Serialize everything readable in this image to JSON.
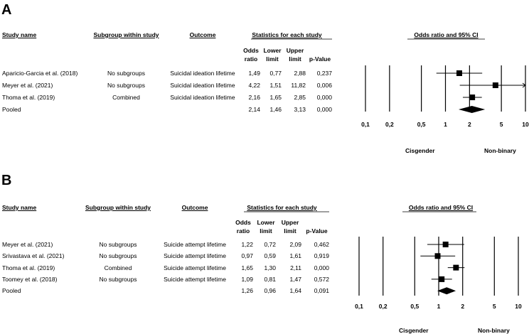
{
  "panels": [
    {
      "letter": "A",
      "headers": {
        "study": "Study name",
        "subgroup": "Subgroup within study",
        "outcome": "Outcome",
        "stats": "Statistics for each study",
        "plot": "Odds ratio and 95% CI",
        "or1": "Odds",
        "or2": "ratio",
        "lo1": "Lower",
        "lo2": "limit",
        "up1": "Upper",
        "up2": "limit",
        "pv": "p-Value"
      },
      "rows": [
        {
          "study": "Aparicio-Garcia et al. (2018)",
          "subgroup": "No subgroups",
          "outcome": "Suicidal ideation lifetime",
          "or": "1,49",
          "lower": "0,77",
          "upper": "2,88",
          "p": "0,237"
        },
        {
          "study": "Meyer et al. (2021)",
          "subgroup": "No subgroups",
          "outcome": "Suicidal ideation lifetime",
          "or": "4,22",
          "lower": "1,51",
          "upper": "11,82",
          "p": "0,006"
        },
        {
          "study": "Thoma et al. (2019)",
          "subgroup": "Combined",
          "outcome": "Suicidal ideation lifetime",
          "or": "2,16",
          "lower": "1,65",
          "upper": "2,85",
          "p": "0,000"
        }
      ],
      "pooled": {
        "label": "Pooled",
        "or": "2,14",
        "lower": "1,46",
        "upper": "3,13",
        "p": "0,000"
      },
      "ticks": [
        "0,1",
        "0,2",
        "0,5",
        "1",
        "2",
        "5",
        "10"
      ],
      "left_label": "Cisgender",
      "right_label": "Non-binary"
    },
    {
      "letter": "B",
      "headers": {
        "study": "Study name",
        "subgroup": "Subgroup within study",
        "outcome": "Outcome",
        "stats": "Statistics for each study",
        "plot": "Odds ratio and 95% CI",
        "or1": "Odds",
        "or2": "ratio",
        "lo1": "Lower",
        "lo2": "limit",
        "up1": "Upper",
        "up2": "limit",
        "pv": "p-Value"
      },
      "rows": [
        {
          "study": "Meyer et al. (2021)",
          "subgroup": "No subgroups",
          "outcome": "Suicide attempt lifetime",
          "or": "1,22",
          "lower": "0,72",
          "upper": "2,09",
          "p": "0,462"
        },
        {
          "study": "Srivastava et al. (2021)",
          "subgroup": "No subgroups",
          "outcome": "Suicide attempt lifetime",
          "or": "0,97",
          "lower": "0,59",
          "upper": "1,61",
          "p": "0,919"
        },
        {
          "study": "Thoma et al. (2019)",
          "subgroup": "Combined",
          "outcome": "Suicide attempt lifetime",
          "or": "1,65",
          "lower": "1,30",
          "upper": "2,11",
          "p": "0,000"
        },
        {
          "study": "Toomey et al. (2018)",
          "subgroup": "No subgroups",
          "outcome": "Suicide attempt lifetime",
          "or": "1,09",
          "lower": "0,81",
          "upper": "1,47",
          "p": "0,572"
        }
      ],
      "pooled": {
        "label": "Pooled",
        "or": "1,26",
        "lower": "0,96",
        "upper": "1,64",
        "p": "0,091"
      },
      "ticks": [
        "0,1",
        "0,2",
        "0,5",
        "1",
        "2",
        "5",
        "10"
      ],
      "left_label": "Cisgender",
      "right_label": "Non-binary"
    }
  ],
  "chart_data": [
    {
      "type": "forest",
      "title": "Odds ratio and 95% CI",
      "scale": "log",
      "xlim": [
        0.1,
        10
      ],
      "xticks": [
        0.1,
        0.2,
        0.5,
        1,
        2,
        5,
        10
      ],
      "studies": [
        {
          "name": "Aparicio-Garcia et al. (2018)",
          "or": 1.49,
          "lower": 0.77,
          "upper": 2.88,
          "p": 0.237
        },
        {
          "name": "Meyer et al. (2021)",
          "or": 4.22,
          "lower": 1.51,
          "upper": 11.82,
          "p": 0.006
        },
        {
          "name": "Thoma et al. (2019)",
          "or": 2.16,
          "lower": 1.65,
          "upper": 2.85,
          "p": 0.0
        }
      ],
      "pooled": {
        "or": 2.14,
        "lower": 1.46,
        "upper": 3.13,
        "p": 0.0
      },
      "left_label": "Cisgender",
      "right_label": "Non-binary"
    },
    {
      "type": "forest",
      "title": "Odds ratio and 95% CI",
      "scale": "log",
      "xlim": [
        0.1,
        10
      ],
      "xticks": [
        0.1,
        0.2,
        0.5,
        1,
        2,
        5,
        10
      ],
      "studies": [
        {
          "name": "Meyer et al. (2021)",
          "or": 1.22,
          "lower": 0.72,
          "upper": 2.09,
          "p": 0.462
        },
        {
          "name": "Srivastava et al. (2021)",
          "or": 0.97,
          "lower": 0.59,
          "upper": 1.61,
          "p": 0.919
        },
        {
          "name": "Thoma et al. (2019)",
          "or": 1.65,
          "lower": 1.3,
          "upper": 2.11,
          "p": 0.0
        },
        {
          "name": "Toomey et al. (2018)",
          "or": 1.09,
          "lower": 0.81,
          "upper": 1.47,
          "p": 0.572
        }
      ],
      "pooled": {
        "or": 1.26,
        "lower": 0.96,
        "upper": 1.64,
        "p": 0.091
      },
      "left_label": "Cisgender",
      "right_label": "Non-binary"
    }
  ]
}
